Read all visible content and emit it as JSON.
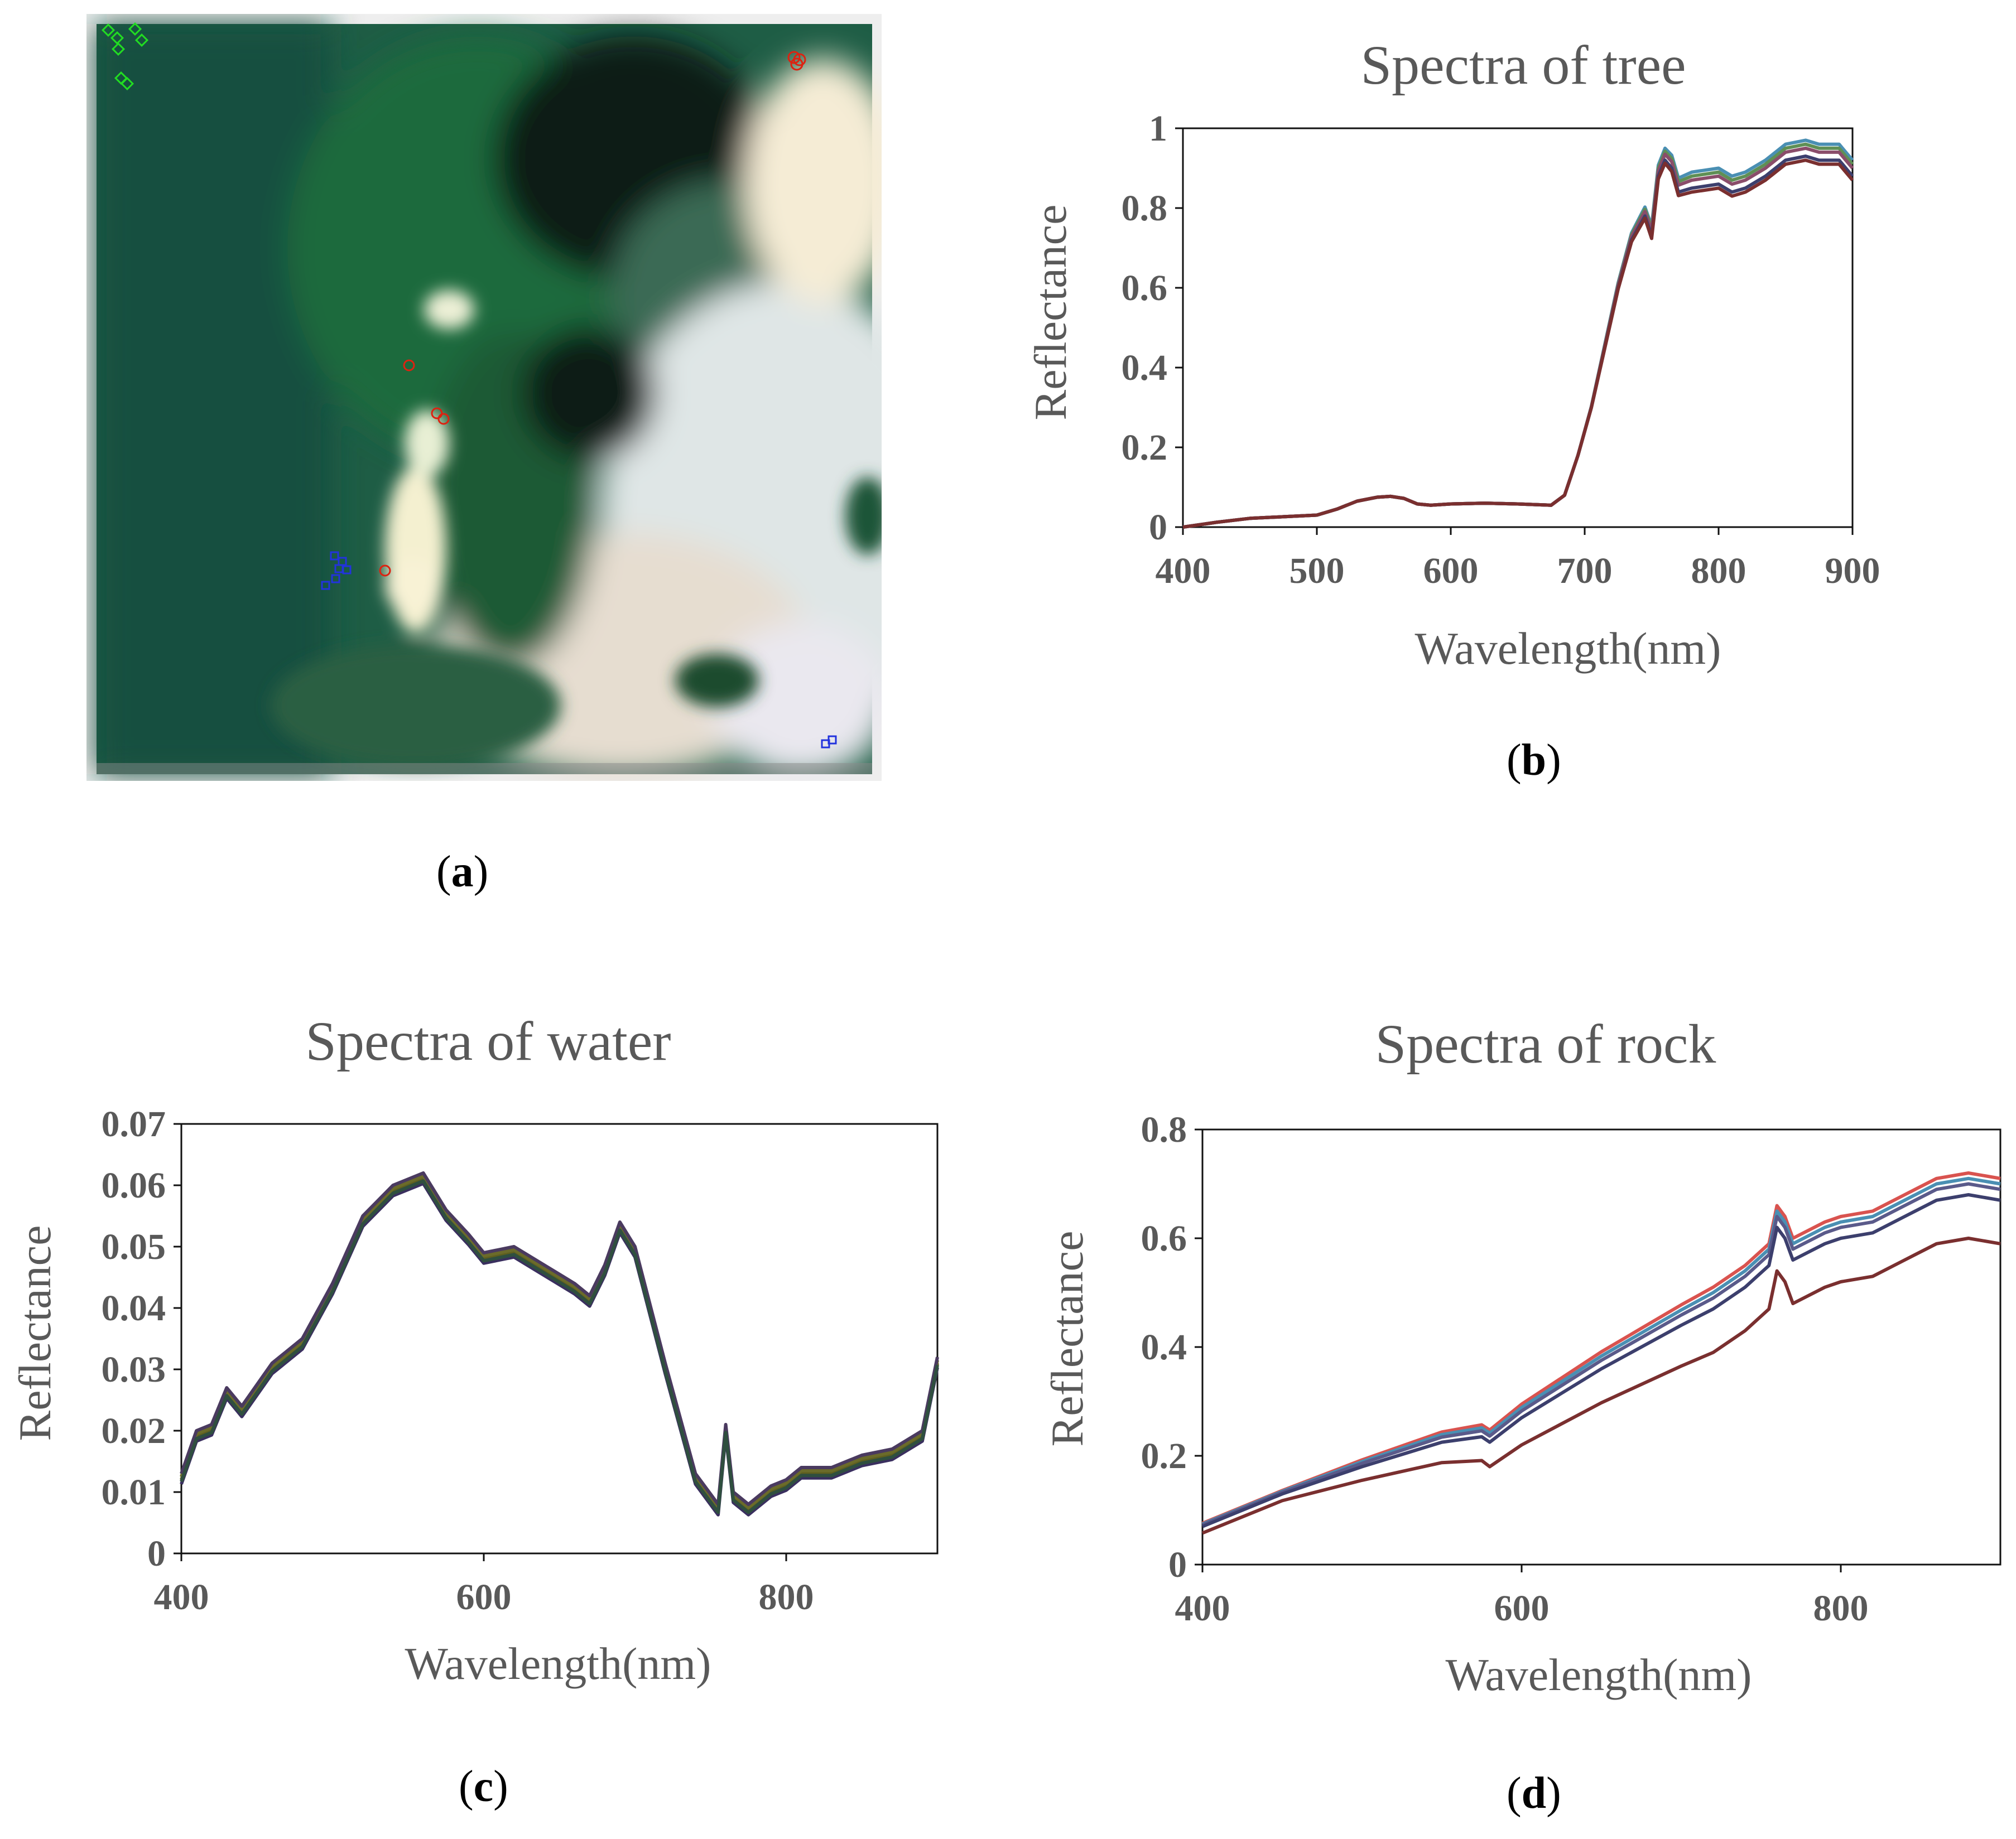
{
  "captions": {
    "a": "a",
    "b": "b",
    "c": "c",
    "d": "d"
  },
  "image_a": {
    "description": "false-color satellite scene with sample markers",
    "marker_colors": {
      "tree": "#22dd22",
      "rock": "#dd2211",
      "water": "#2233dd"
    }
  },
  "chart_data": [
    {
      "id": "b",
      "type": "line",
      "title": "Spectra of tree",
      "xlabel": "Wavelength(nm)",
      "ylabel": "Reflectance",
      "xlim": [
        400,
        900
      ],
      "ylim": [
        0,
        1
      ],
      "xticks": [
        "400",
        "500",
        "600",
        "700",
        "800",
        "900"
      ],
      "yticks": [
        "0",
        "0.2",
        "0.4",
        "0.6",
        "0.8",
        "1"
      ],
      "colors": [
        "#4a8fb3",
        "#5f8f55",
        "#8a4d6a",
        "#3c3f6d",
        "#7a2f2f"
      ],
      "x": [
        400,
        425,
        450,
        475,
        500,
        515,
        530,
        545,
        555,
        565,
        575,
        585,
        600,
        625,
        650,
        675,
        685,
        695,
        705,
        715,
        725,
        735,
        745,
        750,
        755,
        760,
        765,
        770,
        780,
        800,
        810,
        820,
        835,
        850,
        865,
        875,
        890,
        900
      ],
      "base": [
        0.0,
        0.012,
        0.022,
        0.026,
        0.03,
        0.045,
        0.065,
        0.075,
        0.077,
        0.072,
        0.058,
        0.055,
        0.058,
        0.06,
        0.058,
        0.055,
        0.08,
        0.18,
        0.3,
        0.45,
        0.6,
        0.72,
        0.78,
        0.73,
        0.88,
        0.92,
        0.9,
        0.84,
        0.85,
        0.86,
        0.84,
        0.85,
        0.88,
        0.92,
        0.93,
        0.92,
        0.92,
        0.88
      ],
      "offsets": [
        0.04,
        0.03,
        0.02,
        0.0,
        -0.01
      ]
    },
    {
      "id": "c",
      "type": "line",
      "title": "Spectra of water",
      "xlabel": "Wavelength(nm)",
      "ylabel": "Reflectance",
      "xlim": [
        400,
        900
      ],
      "ylim": [
        0,
        0.07
      ],
      "xticks": [
        "400",
        "600",
        "800"
      ],
      "yticks": [
        "0",
        "0.01",
        "0.02",
        "0.03",
        "0.04",
        "0.05",
        "0.06",
        "0.07"
      ],
      "colors": [
        "#5f5f1f",
        "#6b6b2a",
        "#3a2f5f",
        "#4a3a5f",
        "#2f4f3f"
      ],
      "x": [
        400,
        410,
        420,
        430,
        440,
        460,
        480,
        500,
        520,
        540,
        560,
        575,
        590,
        600,
        620,
        640,
        660,
        670,
        680,
        690,
        700,
        720,
        740,
        755,
        760,
        765,
        775,
        790,
        800,
        810,
        830,
        850,
        870,
        890,
        900
      ],
      "base": [
        0.012,
        0.019,
        0.02,
        0.026,
        0.023,
        0.03,
        0.034,
        0.043,
        0.054,
        0.059,
        0.061,
        0.055,
        0.051,
        0.048,
        0.049,
        0.046,
        0.043,
        0.041,
        0.046,
        0.053,
        0.049,
        0.03,
        0.012,
        0.007,
        0.02,
        0.009,
        0.007,
        0.01,
        0.011,
        0.013,
        0.013,
        0.015,
        0.016,
        0.019,
        0.031
      ],
      "offsets": [
        0.0,
        0.0005,
        -0.0007,
        0.001,
        -0.0003
      ]
    },
    {
      "id": "d",
      "type": "line",
      "title": "Spectra of rock",
      "xlabel": "Wavelength(nm)",
      "ylabel": "Reflectance",
      "xlim": [
        400,
        900
      ],
      "ylim": [
        0,
        0.8
      ],
      "xticks": [
        "400",
        "600",
        "800"
      ],
      "yticks": [
        "0",
        "0.2",
        "0.4",
        "0.6",
        "0.8"
      ],
      "colors": [
        "#d9534f",
        "#4a8fb3",
        "#5a5a8a",
        "#3c3f6d",
        "#7a2f2f"
      ],
      "x": [
        400,
        450,
        500,
        550,
        575,
        580,
        600,
        650,
        700,
        720,
        740,
        755,
        760,
        765,
        770,
        790,
        800,
        820,
        840,
        860,
        880,
        900
      ],
      "base": [
        0.07,
        0.13,
        0.18,
        0.225,
        0.235,
        0.225,
        0.27,
        0.36,
        0.44,
        0.47,
        0.51,
        0.55,
        0.62,
        0.6,
        0.56,
        0.59,
        0.6,
        0.61,
        0.64,
        0.67,
        0.68,
        0.67
      ],
      "offsets": [
        0.04,
        0.03,
        0.02,
        0.0,
        -0.08
      ]
    }
  ]
}
